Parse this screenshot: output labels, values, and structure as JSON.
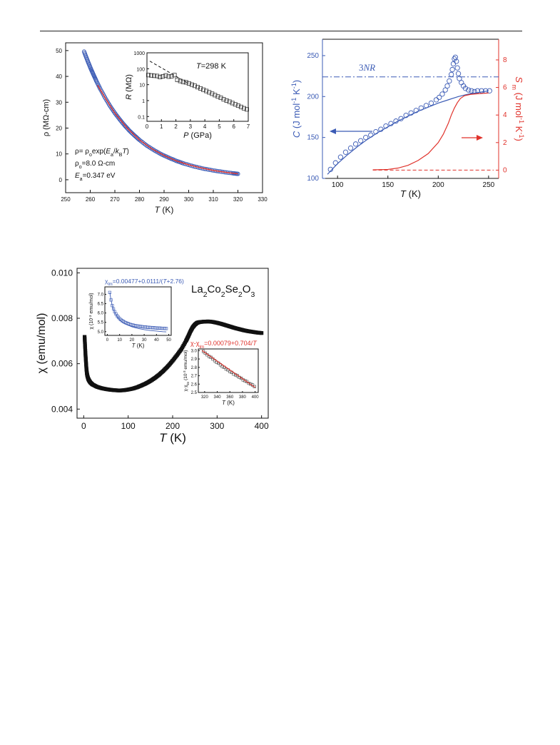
{
  "colors": {
    "blue": "#3b5bb5",
    "red": "#e0322b",
    "black": "#111111",
    "grid_dash": "#222222"
  },
  "chart_data": [
    {
      "id": "resistivity",
      "type": "scatter",
      "xlabel": "T (K)",
      "ylabel": "ρ (MΩ-cm)",
      "xlim": [
        250,
        330
      ],
      "ylim": [
        -5,
        53
      ],
      "xticks": [
        250,
        260,
        270,
        280,
        290,
        300,
        310,
        320,
        330
      ],
      "yticks": [
        0,
        10,
        20,
        30,
        40,
        50
      ],
      "series": [
        {
          "kind": "markers",
          "color": "blue",
          "x": [
            257.5,
            258.5,
            259.5,
            260.5,
            261.5,
            262.5,
            264,
            266,
            268,
            270,
            272,
            274,
            276,
            278,
            280,
            283,
            286,
            289,
            292,
            295,
            298,
            302,
            306,
            310,
            314,
            318,
            320
          ],
          "y": [
            49.6,
            47.1,
            44.7,
            42.4,
            40.3,
            38.2,
            35.3,
            31.8,
            28.6,
            25.8,
            23.3,
            21.0,
            18.9,
            17.1,
            15.4,
            13.2,
            11.4,
            9.8,
            8.5,
            7.3,
            6.3,
            5.2,
            4.3,
            3.6,
            3.0,
            2.5,
            2.3
          ]
        },
        {
          "kind": "fit",
          "color": "red",
          "x": [
            263,
            266,
            270,
            275,
            280,
            285,
            290,
            295,
            300,
            305,
            310,
            315,
            320
          ],
          "y": [
            36.6,
            31.8,
            25.8,
            20.0,
            15.4,
            12.0,
            9.4,
            7.3,
            5.8,
            4.6,
            3.6,
            2.9,
            2.3
          ]
        }
      ],
      "annotations": [
        "ρ= ρ₀exp(Eₐ/k_B T)",
        "ρ₀=8.0 Ω-cm",
        "Eₐ=0.347 eV"
      ],
      "inset": {
        "type": "scatter",
        "xlabel": "P (GPa)",
        "ylabel": "R (MΩ)",
        "yscale": "log",
        "xlim": [
          0,
          7
        ],
        "ylim": [
          0.05,
          1000
        ],
        "xticks": [
          0,
          1,
          2,
          3,
          4,
          5,
          6,
          7
        ],
        "yticks": [
          0.1,
          1,
          10,
          100,
          1000
        ],
        "ytick_labels": [
          "0.1",
          "1",
          "10",
          "100",
          "1000"
        ],
        "label": "T=298 K",
        "points": {
          "x": [
            0.1,
            0.3,
            0.5,
            0.7,
            0.9,
            1.1,
            1.3,
            1.5,
            1.7,
            1.9,
            2.1,
            2.3,
            2.5,
            2.7,
            2.9,
            3.1,
            3.3,
            3.5,
            3.7,
            3.9,
            4.1,
            4.3,
            4.5,
            4.7,
            4.9,
            5.1,
            5.3,
            5.5,
            5.7,
            5.9,
            6.1,
            6.3,
            6.5,
            6.7,
            6.9
          ],
          "y": [
            40,
            38,
            36,
            35,
            30,
            33,
            38,
            32,
            34,
            40,
            20,
            17,
            15,
            14,
            12,
            10,
            8.5,
            7,
            5.8,
            4.8,
            4,
            3.3,
            2.7,
            2.2,
            1.8,
            1.5,
            1.2,
            1.0,
            0.85,
            0.7,
            0.58,
            0.48,
            0.4,
            0.33,
            0.28
          ]
        },
        "dashed_line": {
          "x": [
            0.2,
            2.8
          ],
          "y": [
            300,
            13
          ]
        }
      }
    },
    {
      "id": "heat-capacity",
      "type": "scatter",
      "xlabel": "T (K)",
      "ylabel_left": "C (J mol⁻¹ K⁻¹)",
      "ylabel_right": "S_m (J mol⁻¹ K⁻¹)",
      "xlim": [
        85,
        260
      ],
      "ylim_left": [
        100,
        270
      ],
      "ylim_right": [
        -0.6,
        9.5
      ],
      "xticks": [
        100,
        150,
        200,
        250
      ],
      "yticks_left": [
        100,
        150,
        200,
        250
      ],
      "yticks_right": [
        0,
        2,
        4,
        6,
        8
      ],
      "reference_label": "3NR",
      "reference_value": 224,
      "series": [
        {
          "kind": "markers",
          "color": "blue",
          "axis": "left",
          "x": [
            93,
            98,
            103,
            108,
            113,
            118,
            123,
            128,
            133,
            138,
            143,
            148,
            153,
            158,
            163,
            168,
            173,
            178,
            183,
            188,
            193,
            198,
            201,
            204,
            207,
            209,
            211,
            213,
            214,
            215,
            216,
            217,
            218,
            219,
            220,
            221,
            223,
            225,
            227,
            230,
            233,
            236,
            239,
            243,
            247,
            251
          ],
          "y": [
            111,
            119,
            126,
            132,
            137,
            142,
            146,
            150,
            153,
            157,
            160,
            164,
            167,
            170,
            173,
            177,
            180,
            183,
            186,
            189,
            192,
            196,
            199,
            203,
            208,
            213,
            219,
            227,
            233,
            240,
            246,
            248,
            243,
            235,
            228,
            222,
            217,
            213,
            210,
            208,
            207,
            206,
            207,
            207,
            207,
            207
          ]
        },
        {
          "kind": "line",
          "color": "blue",
          "axis": "left",
          "x": [
            90,
            100,
            110,
            120,
            130,
            140,
            150,
            160,
            170,
            180,
            190,
            200,
            210,
            220,
            230,
            240,
            250
          ],
          "y": [
            105,
            118,
            129,
            139,
            148,
            156,
            163,
            170,
            176,
            182,
            187,
            192,
            196,
            200,
            203,
            205,
            207
          ]
        },
        {
          "kind": "line",
          "color": "red",
          "axis": "right",
          "x": [
            135,
            150,
            160,
            170,
            180,
            190,
            200,
            205,
            210,
            213,
            216,
            219,
            222,
            226,
            232,
            240,
            250
          ],
          "y": [
            0.02,
            0.05,
            0.15,
            0.35,
            0.7,
            1.2,
            2.0,
            2.6,
            3.4,
            4.0,
            4.5,
            4.9,
            5.2,
            5.4,
            5.5,
            5.55,
            5.6
          ]
        },
        {
          "kind": "dashed",
          "color": "red",
          "axis": "right",
          "x": [
            135,
            255
          ],
          "y": [
            0,
            0
          ]
        }
      ]
    },
    {
      "id": "susceptibility",
      "type": "scatter",
      "xlabel": "T (K)",
      "ylabel": "χ (emu/mol)",
      "xlim": [
        -15,
        415
      ],
      "ylim": [
        0.0036,
        0.0102
      ],
      "xticks": [
        0,
        100,
        200,
        300,
        400
      ],
      "yticks": [
        0.004,
        0.006,
        0.008,
        0.01
      ],
      "ytick_labels": [
        "0.004",
        "0.006",
        "0.008",
        "0.010"
      ],
      "compound": "La2Co2Se2O3",
      "series": [
        {
          "kind": "markers",
          "color": "black",
          "x": [
            2,
            3,
            4,
            5,
            6,
            7,
            8,
            10,
            12,
            15,
            20,
            30,
            40,
            50,
            60,
            70,
            80,
            90,
            100,
            110,
            120,
            130,
            140,
            150,
            160,
            170,
            180,
            190,
            200,
            210,
            220,
            230,
            235,
            240,
            245,
            250,
            255,
            260,
            270,
            280,
            290,
            300,
            310,
            320,
            330,
            340,
            350,
            360,
            370,
            380,
            390,
            400
          ],
          "y": [
            0.00718,
            0.0068,
            0.0064,
            0.0061,
            0.0058,
            0.0056,
            0.00548,
            0.00534,
            0.00526,
            0.00517,
            0.00508,
            0.00498,
            0.00492,
            0.00488,
            0.00485,
            0.00483,
            0.00482,
            0.00483,
            0.00486,
            0.0049,
            0.00496,
            0.00504,
            0.00513,
            0.00524,
            0.00537,
            0.00552,
            0.0057,
            0.0059,
            0.00613,
            0.00638,
            0.00665,
            0.007,
            0.0072,
            0.00742,
            0.0076,
            0.00772,
            0.0078,
            0.00783,
            0.00785,
            0.00786,
            0.00784,
            0.0078,
            0.00775,
            0.00769,
            0.00763,
            0.00757,
            0.00752,
            0.00747,
            0.00743,
            0.0074,
            0.00737,
            0.00735
          ]
        }
      ],
      "inset_low": {
        "formula": "χlm=0.00477+0.0111/(T+2.76)",
        "xlabel": "T (K)",
        "ylabel": "χ (10⁻³ emu/mol)",
        "xlim": [
          -2,
          52
        ],
        "ylim": [
          4.8,
          7.4
        ],
        "xticks": [
          0,
          10,
          20,
          30,
          40,
          50
        ],
        "yticks": [
          5.0,
          5.5,
          6.0,
          6.5,
          7.0
        ],
        "ytick_labels": [
          "5.0",
          "5.5",
          "6.0",
          "6.5",
          "7.0"
        ],
        "points": {
          "x": [
            2,
            3,
            4,
            5,
            6,
            7,
            8,
            9,
            10,
            11,
            12,
            13,
            14,
            15,
            16,
            17,
            18,
            19,
            20,
            21,
            22,
            23,
            24,
            25,
            26,
            27,
            28,
            29,
            30,
            31,
            32,
            33,
            34,
            35,
            36,
            37,
            38,
            39,
            40,
            41,
            42,
            43,
            44,
            45,
            46,
            47,
            48
          ],
          "y": [
            7.1,
            6.7,
            6.4,
            6.22,
            6.07,
            5.95,
            5.85,
            5.77,
            5.7,
            5.64,
            5.59,
            5.55,
            5.51,
            5.48,
            5.45,
            5.43,
            5.4,
            5.38,
            5.36,
            5.35,
            5.33,
            5.32,
            5.31,
            5.3,
            5.29,
            5.28,
            5.27,
            5.26,
            5.25,
            5.25,
            5.24,
            5.23,
            5.23,
            5.22,
            5.22,
            5.21,
            5.21,
            5.2,
            5.2,
            5.19,
            5.19,
            5.19,
            5.18,
            5.18,
            5.18,
            5.17,
            5.17
          ]
        },
        "fit": {
          "x": [
            2,
            3,
            4,
            5,
            6,
            8,
            10,
            12,
            15,
            20,
            25,
            30,
            35,
            40,
            45,
            48
          ],
          "y": [
            7.1,
            6.7,
            6.4,
            6.2,
            6.04,
            5.8,
            5.64,
            5.52,
            5.4,
            5.26,
            5.17,
            5.11,
            5.06,
            5.03,
            5.0,
            4.99
          ]
        }
      },
      "inset_high": {
        "formula": "χ-χlm=0.00079+0.704/T",
        "xlabel": "T (K)",
        "ylabel": "χ-χlm (10⁻³ emu/mol)",
        "xlim": [
          310,
          405
        ],
        "ylim": [
          2.5,
          3.02
        ],
        "xticks": [
          320,
          340,
          360,
          380,
          400
        ],
        "yticks": [
          2.5,
          2.6,
          2.7,
          2.8,
          2.9,
          3.0
        ],
        "ytick_labels": [
          "2.5",
          "2.6",
          "2.7",
          "2.8",
          "2.9",
          "3.0"
        ],
        "points": {
          "x": [
            318,
            321,
            324,
            327,
            330,
            333,
            336,
            339,
            342,
            345,
            348,
            351,
            354,
            357,
            360,
            363,
            366,
            369,
            372,
            375,
            378,
            381,
            384,
            387,
            390,
            393,
            396,
            399
          ],
          "y": [
            2.99,
            2.97,
            2.95,
            2.93,
            2.92,
            2.9,
            2.88,
            2.86,
            2.85,
            2.83,
            2.81,
            2.8,
            2.78,
            2.77,
            2.75,
            2.74,
            2.72,
            2.71,
            2.7,
            2.68,
            2.67,
            2.65,
            2.64,
            2.63,
            2.61,
            2.6,
            2.59,
            2.57
          ]
        },
        "fit": {
          "x": [
            316,
            400
          ],
          "y": [
            3.0,
            2.56
          ]
        }
      }
    }
  ]
}
